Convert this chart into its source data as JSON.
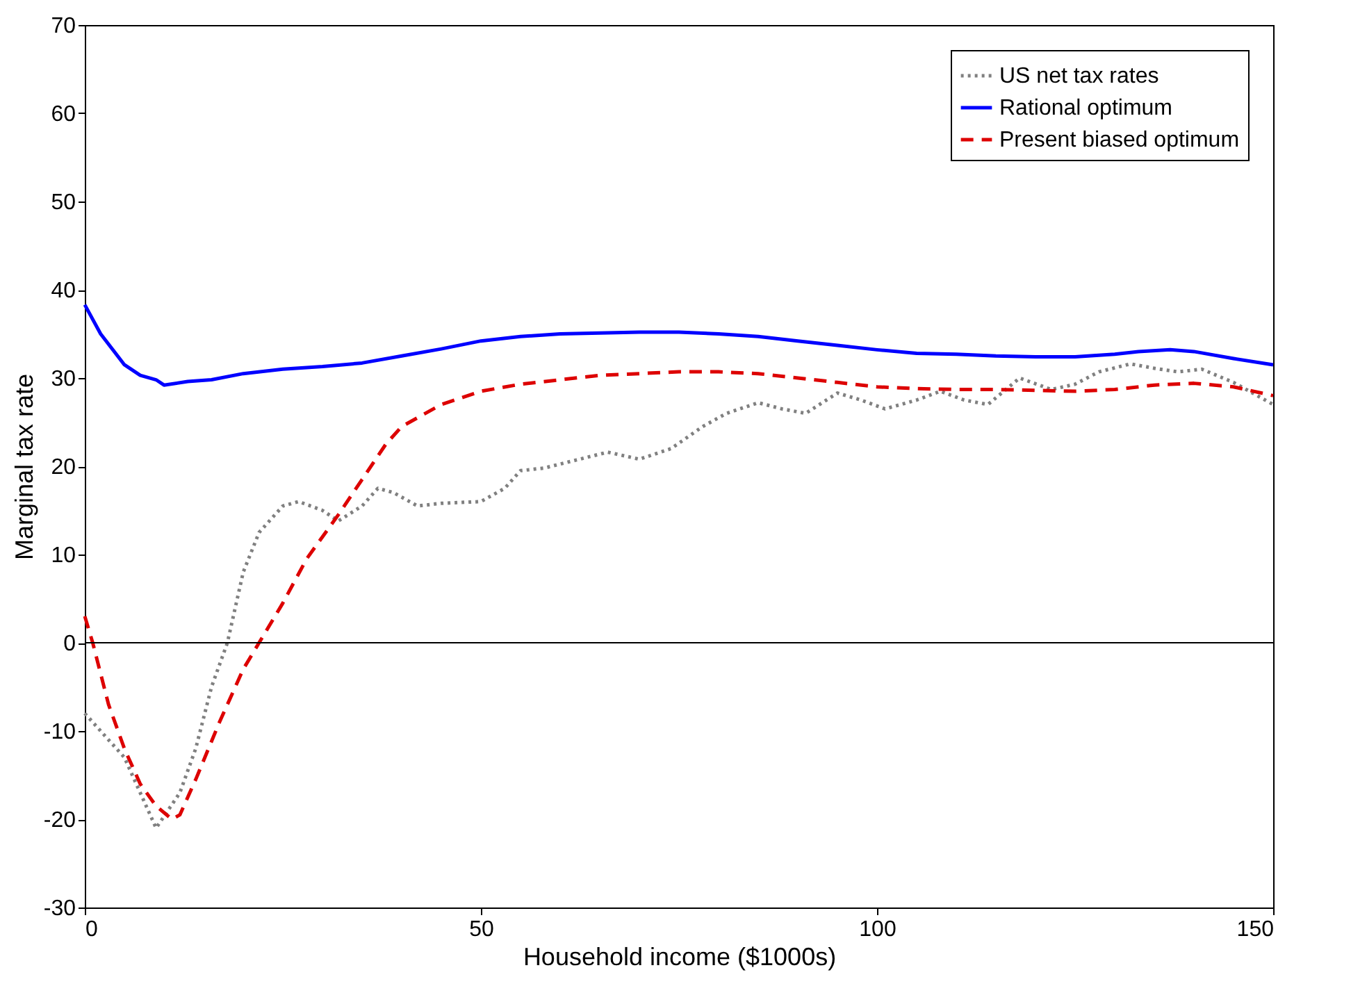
{
  "chart_data": {
    "type": "line",
    "xlabel": "Household income ($1000s)",
    "ylabel": "Marginal tax rate",
    "xlim": [
      0,
      150
    ],
    "xticks": [
      0,
      50,
      100,
      150
    ],
    "ylim": [
      -30,
      70
    ],
    "yticks": [
      -30,
      -20,
      -10,
      0,
      10,
      20,
      30,
      40,
      50,
      60,
      70
    ],
    "grid": false,
    "legend": "top right",
    "ref_lines": [
      {
        "axis": "y",
        "value": 0,
        "color": "#000000"
      }
    ],
    "series": [
      {
        "name": "US net tax rates",
        "color": "#808080",
        "line_style": "dotted",
        "x": [
          0,
          5,
          9,
          12,
          14,
          16,
          18,
          20,
          22,
          25,
          27,
          30,
          32,
          35,
          37,
          39,
          42,
          45,
          50,
          53,
          55,
          58,
          62,
          66,
          70,
          74,
          78,
          81,
          85,
          88,
          91,
          95,
          98,
          101,
          105,
          108,
          111,
          114,
          118,
          122,
          125,
          128,
          132,
          135,
          138,
          141,
          145,
          150
        ],
        "values": [
          -8,
          -13,
          -21,
          -17,
          -12,
          -5,
          0,
          8,
          12.5,
          15.5,
          16,
          15,
          13.8,
          15.5,
          17.5,
          17,
          15.5,
          15.8,
          16,
          17.5,
          19.5,
          19.8,
          20.7,
          21.6,
          20.8,
          22,
          24.5,
          26,
          27.2,
          26.5,
          26,
          28.3,
          27.5,
          26.5,
          27.5,
          28.5,
          27.5,
          27,
          30,
          28.7,
          29.3,
          30.7,
          31.6,
          31.1,
          30.7,
          31,
          29.5,
          27
        ]
      },
      {
        "name": "Rational optimum",
        "color": "#0000ff",
        "line_style": "solid",
        "x": [
          0,
          2,
          5,
          7,
          9,
          10,
          13,
          16,
          20,
          25,
          30,
          35,
          40,
          45,
          50,
          55,
          60,
          65,
          70,
          75,
          80,
          85,
          90,
          95,
          100,
          105,
          110,
          115,
          120,
          125,
          130,
          133,
          137,
          140,
          145,
          150
        ],
        "values": [
          38.3,
          35,
          31.5,
          30.3,
          29.8,
          29.2,
          29.6,
          29.8,
          30.5,
          31,
          31.3,
          31.7,
          32.5,
          33.3,
          34.2,
          34.7,
          35,
          35.1,
          35.2,
          35.2,
          35,
          34.7,
          34.2,
          33.7,
          33.2,
          32.8,
          32.7,
          32.5,
          32.4,
          32.4,
          32.7,
          33,
          33.2,
          33,
          32.2,
          31.5
        ]
      },
      {
        "name": "Present biased optimum",
        "color": "#dd0000",
        "line_style": "dashed",
        "x": [
          0,
          1,
          3,
          5,
          7,
          9,
          11,
          12,
          14,
          17,
          20,
          22,
          25,
          28,
          32,
          35,
          38,
          40,
          45,
          50,
          55,
          60,
          65,
          70,
          75,
          80,
          85,
          90,
          95,
          100,
          105,
          110,
          115,
          120,
          125,
          130,
          135,
          140,
          145,
          150
        ],
        "values": [
          3,
          0,
          -7,
          -12,
          -16,
          -18.5,
          -20,
          -19.5,
          -15.5,
          -9,
          -3,
          0,
          4.5,
          9.5,
          14.5,
          18.5,
          22.5,
          24.5,
          27,
          28.5,
          29.3,
          29.8,
          30.3,
          30.5,
          30.7,
          30.7,
          30.5,
          30,
          29.5,
          29,
          28.8,
          28.7,
          28.7,
          28.6,
          28.5,
          28.7,
          29.2,
          29.4,
          29,
          28
        ]
      }
    ]
  }
}
